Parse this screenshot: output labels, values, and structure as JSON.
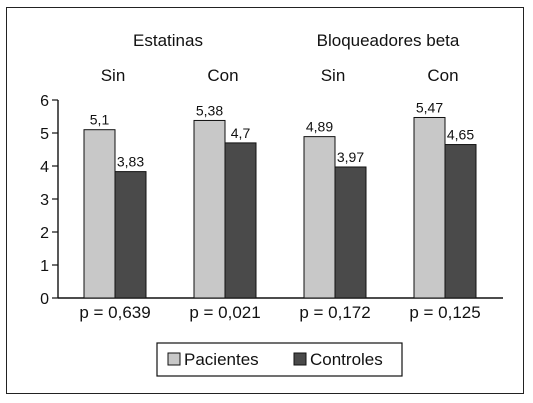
{
  "chart_data": {
    "type": "bar",
    "groups": [
      {
        "label": "Estatinas",
        "subgroups": [
          "Sin",
          "Con"
        ]
      },
      {
        "label": "Bloqueadores beta",
        "subgroups": [
          "Sin",
          "Con"
        ]
      }
    ],
    "categories": [
      "Sin",
      "Con",
      "Sin",
      "Con"
    ],
    "series": [
      {
        "name": "Pacientes",
        "values": [
          5.1,
          5.38,
          4.89,
          5.47
        ],
        "labels": [
          "5,1",
          "5,38",
          "4,89",
          "5,47"
        ],
        "color": "#c8c8c8"
      },
      {
        "name": "Controles",
        "values": [
          3.83,
          4.7,
          3.97,
          4.65
        ],
        "labels": [
          "3,83",
          "4,7",
          "3,97",
          "4,65"
        ],
        "color": "#4a4a4a"
      }
    ],
    "p_values": [
      "p = 0,639",
      "p = 0,021",
      "p = 0,172",
      "p = 0,125"
    ],
    "yticks": [
      "0",
      "1",
      "2",
      "3",
      "4",
      "5",
      "6"
    ],
    "ylim": [
      0,
      6
    ],
    "grid": false,
    "legend_position": "bottom-center"
  }
}
